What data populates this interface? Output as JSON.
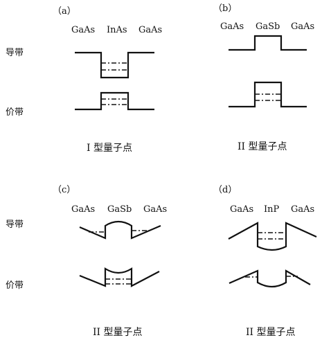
{
  "panels": {
    "a": {
      "tag": "（a）",
      "materials": [
        "GaAs",
        "InAs",
        "GaAs"
      ],
      "caption": "I 型量子点"
    },
    "b": {
      "tag": "（b）",
      "materials": [
        "GaAs",
        "GaSb",
        "GaAs"
      ],
      "caption": "II 型量子点"
    },
    "c": {
      "tag": "（c）",
      "materials": [
        "GaAs",
        "GaSb",
        "GaAs"
      ],
      "caption": "II 型量子点"
    },
    "d": {
      "tag": "（d）",
      "materials": [
        "GaAs",
        "InP",
        "GaAs"
      ],
      "caption": "II 型量子点"
    }
  },
  "row_labels": {
    "top_conduction": "导带",
    "top_valence": "价带",
    "bottom_conduction": "导带",
    "bottom_valence": "价带"
  }
}
